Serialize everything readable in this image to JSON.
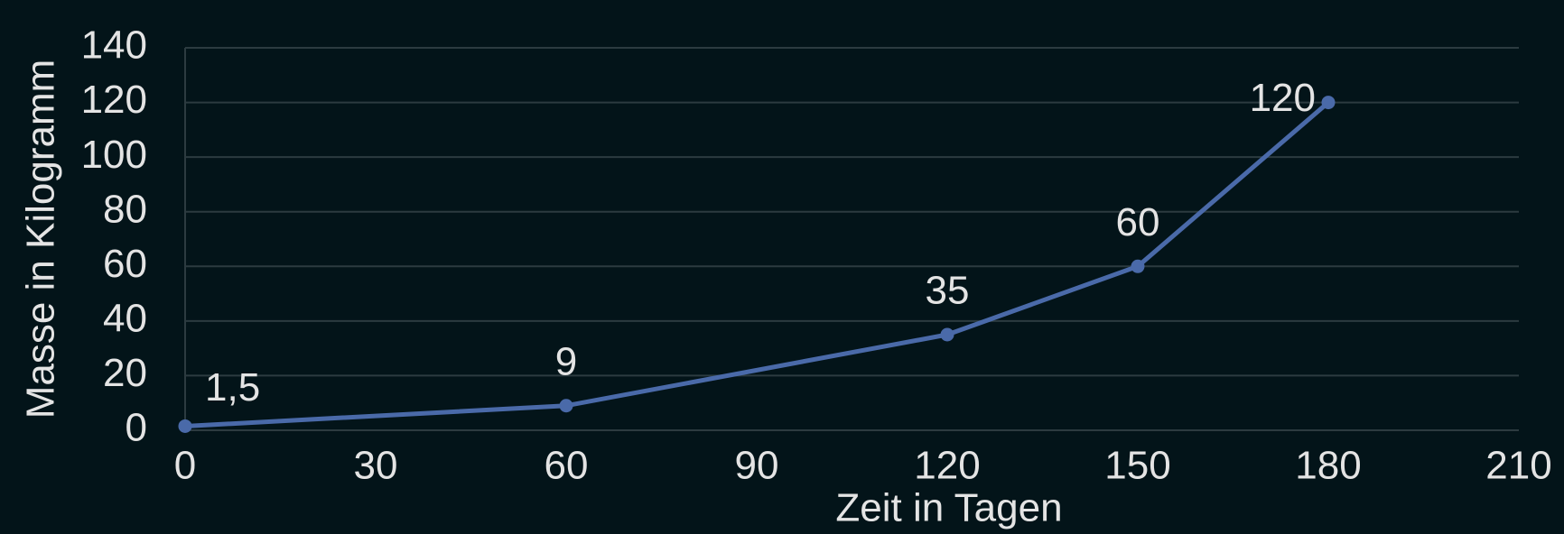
{
  "chart_data": {
    "type": "line",
    "x": [
      0,
      60,
      120,
      150,
      180
    ],
    "values": [
      1.5,
      9,
      35,
      60,
      120
    ],
    "value_labels": [
      "1,5",
      "9",
      "35",
      "60",
      "120"
    ],
    "color": "#4a6aa9",
    "x_label": "Zeit in Tagen",
    "y_label": "Masse in Kilogramm",
    "xlim": [
      0,
      210
    ],
    "xticks": [
      0,
      30,
      60,
      90,
      120,
      150,
      180,
      210
    ],
    "ylim": [
      0,
      140
    ],
    "yticks": [
      0,
      20,
      40,
      60,
      80,
      100,
      120,
      140
    ],
    "grid": true
  }
}
